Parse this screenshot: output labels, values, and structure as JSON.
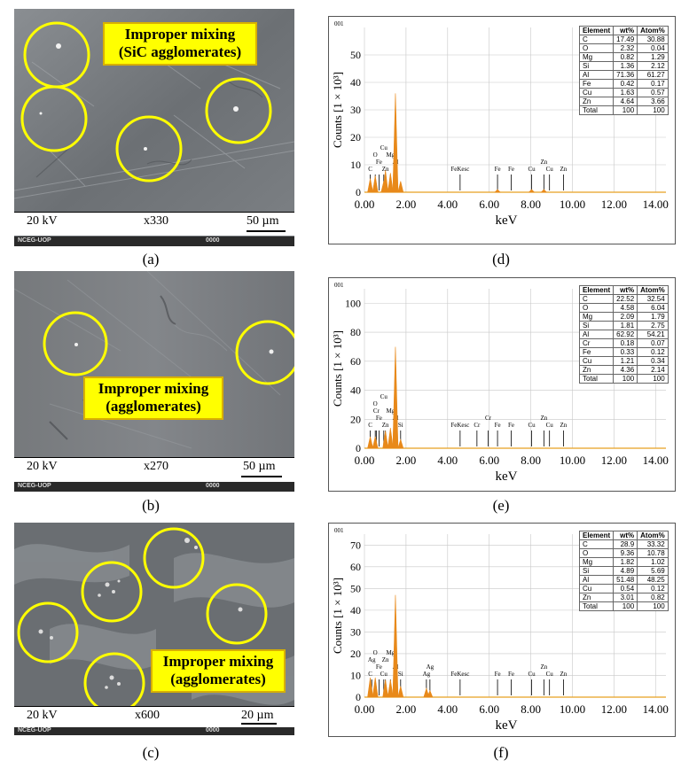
{
  "sem_panels": [
    {
      "id": "a",
      "kv": "20 kV",
      "mag": "x330",
      "scale": "50 µm",
      "footer_left": "NCEG-UOP",
      "footer_mid": "0000",
      "callout": [
        "Improper mixing",
        "(SiC agglomerates)"
      ],
      "caption": "(a)"
    },
    {
      "id": "b",
      "kv": "20 kV",
      "mag": "x270",
      "scale": "50 µm",
      "footer_left": "NCEG-UOP",
      "footer_mid": "0000",
      "callout": [
        "Improper mixing",
        "(agglomerates)"
      ],
      "caption": "(b)"
    },
    {
      "id": "c",
      "kv": "20 kV",
      "mag": "x600",
      "scale": "20 µm",
      "footer_left": "NCEG-UOP",
      "footer_mid": "0000",
      "callout": [
        "Improper mixing",
        "(agglomerates)"
      ],
      "caption": "(c)"
    }
  ],
  "eds_panels": [
    {
      "id": "d",
      "caption": "(d)",
      "label": "001",
      "ylabel": "Counts [1 × 10³]",
      "xlabel": "keV",
      "table": {
        "headers": [
          "Element",
          "wt%",
          "Atom%"
        ],
        "rows": [
          [
            "C",
            "17.49",
            "30.88"
          ],
          [
            "O",
            "2.32",
            "0.04"
          ],
          [
            "Mg",
            "0.82",
            "1.29"
          ],
          [
            "Si",
            "1.36",
            "2.12"
          ],
          [
            "Al",
            "71.36",
            "61.27"
          ],
          [
            "Fe",
            "0.42",
            "0.17"
          ],
          [
            "Cu",
            "1.63",
            "0.57"
          ],
          [
            "Zn",
            "4.64",
            "3.66"
          ],
          [
            "Total",
            "100",
            "100"
          ]
        ]
      }
    },
    {
      "id": "e",
      "caption": "(e)",
      "label": "001",
      "ylabel": "Counts [1 × 10³]",
      "xlabel": "keV",
      "table": {
        "headers": [
          "Element",
          "wt%",
          "Atom%"
        ],
        "rows": [
          [
            "C",
            "22.52",
            "32.54"
          ],
          [
            "O",
            "4.58",
            "6.04"
          ],
          [
            "Mg",
            "2.09",
            "1.79"
          ],
          [
            "Si",
            "1.81",
            "2.75"
          ],
          [
            "Al",
            "62.92",
            "54.21"
          ],
          [
            "Cr",
            "0.18",
            "0.07"
          ],
          [
            "Fe",
            "0.33",
            "0.12"
          ],
          [
            "Cu",
            "1.21",
            "0.34"
          ],
          [
            "Zn",
            "4.36",
            "2.14"
          ],
          [
            "Total",
            "100",
            "100"
          ]
        ]
      }
    },
    {
      "id": "f",
      "caption": "(f)",
      "label": "001",
      "ylabel": "Counts [1 × 10³]",
      "xlabel": "keV",
      "table": {
        "headers": [
          "Element",
          "wt%",
          "Atom%"
        ],
        "rows": [
          [
            "C",
            "28.9",
            "33.32"
          ],
          [
            "O",
            "9.36",
            "10.78"
          ],
          [
            "Mg",
            "1.82",
            "1.02"
          ],
          [
            "Si",
            "4.89",
            "5.69"
          ],
          [
            "Al",
            "51.48",
            "48.25"
          ],
          [
            "Cu",
            "0.54",
            "0.12"
          ],
          [
            "Zn",
            "3.01",
            "0.82"
          ],
          [
            "Total",
            "100",
            "100"
          ]
        ]
      }
    }
  ],
  "chart_data": [
    {
      "type": "line",
      "panel": "d",
      "xlabel": "keV",
      "ylabel": "Counts [1 × 10³]",
      "xlim": [
        0,
        14.5
      ],
      "ylim": [
        0,
        60
      ],
      "x_ticks": [
        "0.00",
        "2.00",
        "4.00",
        "6.00",
        "8.00",
        "10.00",
        "12.00",
        "14.00"
      ],
      "y_ticks": [
        "0",
        "10",
        "20",
        "30",
        "40",
        "50"
      ],
      "peaks": [
        {
          "x": 0.28,
          "y": 5
        },
        {
          "x": 0.52,
          "y": 6
        },
        {
          "x": 0.93,
          "y": 4
        },
        {
          "x": 1.01,
          "y": 8
        },
        {
          "x": 1.25,
          "y": 7
        },
        {
          "x": 1.49,
          "y": 36
        },
        {
          "x": 1.74,
          "y": 4
        },
        {
          "x": 6.4,
          "y": 1
        },
        {
          "x": 8.04,
          "y": 1
        },
        {
          "x": 8.63,
          "y": 1
        }
      ],
      "element_markers": [
        {
          "label": "C",
          "x": 0.28
        },
        {
          "label": "Fe",
          "x": 0.7
        },
        {
          "label": "O",
          "x": 0.52
        },
        {
          "label": "Zn",
          "x": 1.01
        },
        {
          "label": "Cu",
          "x": 0.93
        },
        {
          "label": "Mg",
          "x": 1.25
        },
        {
          "label": "Al",
          "x": 1.49
        },
        {
          "label": "FeKesc",
          "x": 4.6
        },
        {
          "label": "Fe",
          "x": 6.4
        },
        {
          "label": "Fe",
          "x": 7.06
        },
        {
          "label": "Cu",
          "x": 8.04
        },
        {
          "label": "Zn",
          "x": 8.63
        },
        {
          "label": "Cu",
          "x": 8.9
        },
        {
          "label": "Zn",
          "x": 9.57
        }
      ]
    },
    {
      "type": "line",
      "panel": "e",
      "xlabel": "keV",
      "ylabel": "Counts [1 × 10³]",
      "xlim": [
        0,
        14.5
      ],
      "ylim": [
        0,
        110
      ],
      "x_ticks": [
        "0.00",
        "2.00",
        "4.00",
        "6.00",
        "8.00",
        "10.00",
        "12.00",
        "14.00"
      ],
      "y_ticks": [
        "0",
        "20",
        "40",
        "60",
        "80",
        "100"
      ],
      "peaks": [
        {
          "x": 0.28,
          "y": 8
        },
        {
          "x": 0.52,
          "y": 8
        },
        {
          "x": 1.01,
          "y": 12
        },
        {
          "x": 1.25,
          "y": 14
        },
        {
          "x": 1.49,
          "y": 70
        },
        {
          "x": 1.74,
          "y": 6
        }
      ],
      "element_markers": [
        {
          "label": "C",
          "x": 0.28
        },
        {
          "label": "Fe",
          "x": 0.7
        },
        {
          "label": "Cr",
          "x": 0.57
        },
        {
          "label": "Zn",
          "x": 1.01
        },
        {
          "label": "O",
          "x": 0.52
        },
        {
          "label": "Cu",
          "x": 0.93
        },
        {
          "label": "Mg",
          "x": 1.25
        },
        {
          "label": "Al",
          "x": 1.49
        },
        {
          "label": "Si",
          "x": 1.74
        },
        {
          "label": "FeKesc",
          "x": 4.6
        },
        {
          "label": "Cr",
          "x": 5.41
        },
        {
          "label": "Cr",
          "x": 5.95
        },
        {
          "label": "Fe",
          "x": 6.4
        },
        {
          "label": "Fe",
          "x": 7.06
        },
        {
          "label": "Cu",
          "x": 8.04
        },
        {
          "label": "Zn",
          "x": 8.63
        },
        {
          "label": "Cu",
          "x": 8.9
        },
        {
          "label": "Zn",
          "x": 9.57
        }
      ]
    },
    {
      "type": "line",
      "panel": "f",
      "xlabel": "keV",
      "ylabel": "Counts [1 × 10³]",
      "xlim": [
        0,
        14.5
      ],
      "ylim": [
        0,
        75
      ],
      "x_ticks": [
        "0.00",
        "2.00",
        "4.00",
        "6.00",
        "8.00",
        "10.00",
        "12.00",
        "14.00"
      ],
      "y_ticks": [
        "0",
        "10",
        "20",
        "30",
        "40",
        "50",
        "60",
        "70"
      ],
      "peaks": [
        {
          "x": 0.28,
          "y": 9
        },
        {
          "x": 0.52,
          "y": 9
        },
        {
          "x": 1.01,
          "y": 8
        },
        {
          "x": 1.25,
          "y": 8
        },
        {
          "x": 1.49,
          "y": 47
        },
        {
          "x": 1.74,
          "y": 5
        },
        {
          "x": 2.98,
          "y": 4
        },
        {
          "x": 3.15,
          "y": 3
        }
      ],
      "element_markers": [
        {
          "label": "C",
          "x": 0.28
        },
        {
          "label": "Fe",
          "x": 0.7
        },
        {
          "label": "Ag",
          "x": 0.35
        },
        {
          "label": "Cu",
          "x": 0.93
        },
        {
          "label": "O",
          "x": 0.52
        },
        {
          "label": "Zn",
          "x": 1.01
        },
        {
          "label": "Mg",
          "x": 1.25
        },
        {
          "label": "Al",
          "x": 1.49
        },
        {
          "label": "Si",
          "x": 1.74
        },
        {
          "label": "Ag",
          "x": 2.98
        },
        {
          "label": "Ag",
          "x": 3.15
        },
        {
          "label": "FeKesc",
          "x": 4.6
        },
        {
          "label": "Fe",
          "x": 6.4
        },
        {
          "label": "Fe",
          "x": 7.06
        },
        {
          "label": "Cu",
          "x": 8.04
        },
        {
          "label": "Zn",
          "x": 8.63
        },
        {
          "label": "Cu",
          "x": 8.9
        },
        {
          "label": "Zn",
          "x": 9.57
        }
      ]
    }
  ]
}
